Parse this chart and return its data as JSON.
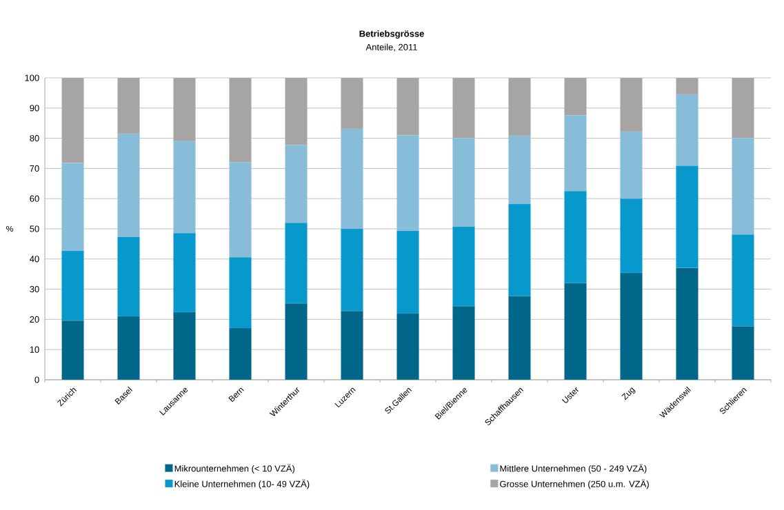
{
  "chart_data": {
    "type": "bar",
    "stacked": true,
    "title": "Betriebsgrösse",
    "subtitle": "Anteile, 2011",
    "ylabel": "%",
    "categories": [
      "Zürich",
      "Basel",
      "Lausanne",
      "Bern",
      "Winterthur",
      "Luzern",
      "St.Gallen",
      "Biel/Bienne",
      "Schaffhausen",
      "Uster",
      "Zug",
      "Wädenswil",
      "Schlieren"
    ],
    "series": [
      {
        "name": "Mikrounternehmen (< 10 VZÄ)",
        "color": "#00678a",
        "values": [
          19.6,
          21.0,
          22.4,
          17.1,
          25.3,
          22.8,
          21.9,
          24.4,
          27.7,
          32.0,
          35.4,
          37.1,
          17.7
        ]
      },
      {
        "name": "Kleine Unternehmen (10- 49 VZÄ)",
        "color": "#0799cc",
        "values": [
          23.1,
          26.3,
          26.2,
          23.5,
          26.7,
          27.2,
          27.4,
          26.3,
          30.5,
          30.5,
          24.6,
          33.8,
          30.4
        ]
      },
      {
        "name": "Mittlere Unternehmen (50 - 249 VZÄ)",
        "color": "#87bdd9",
        "values": [
          29.1,
          34.2,
          30.4,
          31.4,
          25.7,
          33.1,
          31.7,
          29.3,
          22.6,
          25.1,
          22.2,
          23.6,
          31.9
        ]
      },
      {
        "name": "Grosse Unternehmen (250 u.m. VZÄ)",
        "color": "#a6a5a4",
        "values": [
          28.2,
          18.5,
          21.0,
          28.0,
          22.3,
          16.9,
          19.0,
          20.0,
          19.2,
          12.4,
          17.8,
          5.5,
          20.0
        ]
      }
    ],
    "ylim": [
      0,
      100
    ],
    "yticks": [
      0,
      10,
      20,
      30,
      40,
      50,
      60,
      70,
      80,
      90,
      100
    ],
    "grid": "y",
    "legend": "bottom"
  }
}
